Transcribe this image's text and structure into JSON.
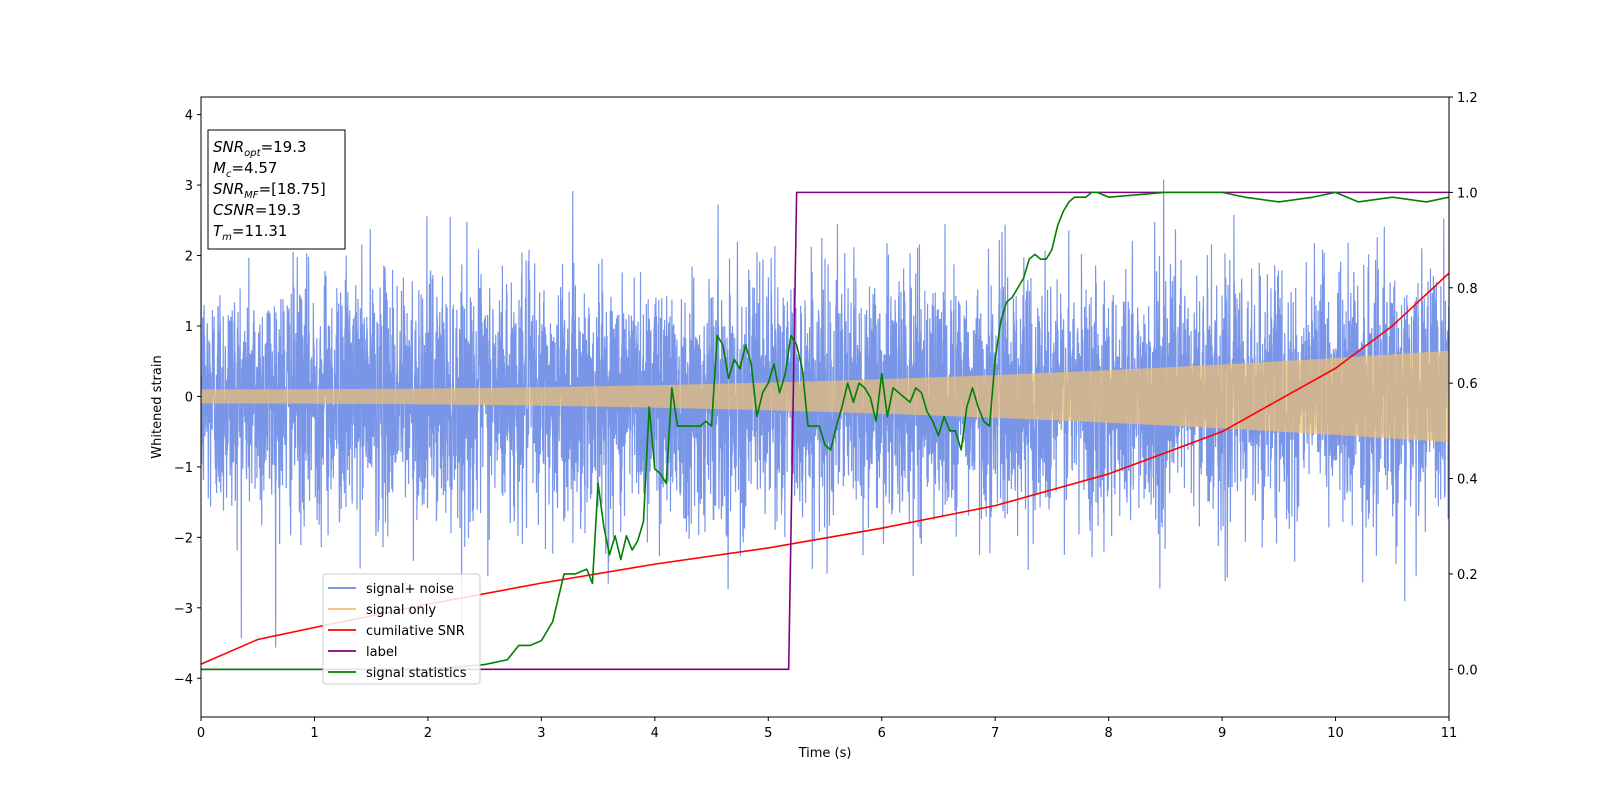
{
  "chart_data": {
    "type": "line",
    "xlabel": "Time (s)",
    "ylabel": "Whitened strain",
    "xlim": [
      0,
      11
    ],
    "ylim": [
      -4.55,
      4.25
    ],
    "y2lim": [
      -0.1,
      1.2
    ],
    "xticks": [
      "0",
      "1",
      "2",
      "3",
      "4",
      "5",
      "6",
      "7",
      "8",
      "9",
      "10",
      "11"
    ],
    "yticks": [
      -4,
      -3,
      -2,
      -1,
      0,
      1,
      2,
      3,
      4
    ],
    "yticks_labels": [
      "−4",
      "−3",
      "−2",
      "−1",
      "0",
      "1",
      "2",
      "3",
      "4"
    ],
    "y2ticks": [
      0.0,
      0.2,
      0.4,
      0.6,
      0.8,
      1.0,
      1.2
    ],
    "y2ticks_labels": [
      "0.0",
      "0.2",
      "0.4",
      "0.6",
      "0.8",
      "1.0",
      "1.2"
    ],
    "colors": {
      "signal_noise": "#6a8ae6",
      "signal_only": "#f0c070",
      "cumulative_snr": "#ff0000",
      "label": "#800080",
      "signal_statistics": "#008000"
    },
    "signal_noise": {
      "noise_std": 0.85,
      "typical_peak": 2.6,
      "max": 3.85,
      "min": -4.15,
      "note_axis": "left"
    },
    "signal_only": {
      "axis": "left",
      "amplitude_start": 0.1,
      "amplitude_end": 0.65
    },
    "cumulative_snr": {
      "axis": "left",
      "x": [
        0,
        0.5,
        1,
        2,
        3,
        4,
        5,
        6,
        7,
        8,
        9,
        10,
        10.5,
        11
      ],
      "y": [
        -3.8,
        -3.45,
        -3.28,
        -2.95,
        -2.65,
        -2.38,
        -2.15,
        -1.87,
        -1.55,
        -1.1,
        -0.5,
        0.4,
        1.0,
        1.75
      ]
    },
    "label": {
      "axis": "right",
      "x": [
        0,
        5.18,
        5.25,
        11
      ],
      "y": [
        0.0,
        0.0,
        1.0,
        1.0
      ]
    },
    "signal_statistics": {
      "axis": "right",
      "x": [
        0,
        1,
        2,
        2.5,
        2.7,
        2.8,
        2.9,
        3.0,
        3.1,
        3.2,
        3.3,
        3.4,
        3.45,
        3.5,
        3.55,
        3.6,
        3.65,
        3.7,
        3.75,
        3.8,
        3.85,
        3.9,
        3.95,
        4.0,
        4.05,
        4.1,
        4.15,
        4.2,
        4.3,
        4.4,
        4.45,
        4.5,
        4.55,
        4.6,
        4.65,
        4.7,
        4.75,
        4.8,
        4.85,
        4.9,
        4.95,
        5.0,
        5.05,
        5.1,
        5.15,
        5.2,
        5.25,
        5.3,
        5.35,
        5.4,
        5.45,
        5.5,
        5.55,
        5.6,
        5.65,
        5.7,
        5.75,
        5.8,
        5.85,
        5.9,
        5.95,
        6.0,
        6.05,
        6.1,
        6.15,
        6.2,
        6.25,
        6.3,
        6.35,
        6.4,
        6.45,
        6.5,
        6.55,
        6.6,
        6.65,
        6.7,
        6.75,
        6.8,
        6.85,
        6.9,
        6.95,
        7.0,
        7.05,
        7.1,
        7.15,
        7.2,
        7.25,
        7.3,
        7.35,
        7.4,
        7.45,
        7.5,
        7.55,
        7.6,
        7.65,
        7.7,
        7.75,
        7.8,
        7.85,
        7.9,
        8.0,
        8.5,
        9.0,
        9.2,
        9.5,
        9.8,
        10.0,
        10.2,
        10.5,
        10.8,
        11.0
      ],
      "y": [
        0.0,
        0.0,
        0.0,
        0.01,
        0.02,
        0.05,
        0.05,
        0.06,
        0.1,
        0.2,
        0.2,
        0.21,
        0.18,
        0.39,
        0.3,
        0.24,
        0.28,
        0.23,
        0.28,
        0.25,
        0.27,
        0.31,
        0.55,
        0.42,
        0.41,
        0.39,
        0.59,
        0.51,
        0.51,
        0.51,
        0.52,
        0.51,
        0.7,
        0.68,
        0.61,
        0.65,
        0.63,
        0.68,
        0.64,
        0.53,
        0.58,
        0.6,
        0.64,
        0.58,
        0.62,
        0.7,
        0.68,
        0.63,
        0.51,
        0.51,
        0.51,
        0.47,
        0.46,
        0.51,
        0.55,
        0.6,
        0.56,
        0.6,
        0.59,
        0.57,
        0.52,
        0.62,
        0.53,
        0.59,
        0.58,
        0.57,
        0.56,
        0.59,
        0.58,
        0.54,
        0.52,
        0.49,
        0.53,
        0.5,
        0.5,
        0.46,
        0.55,
        0.59,
        0.55,
        0.52,
        0.51,
        0.65,
        0.73,
        0.77,
        0.78,
        0.8,
        0.82,
        0.86,
        0.87,
        0.86,
        0.86,
        0.88,
        0.93,
        0.96,
        0.98,
        0.99,
        0.99,
        0.99,
        1.0,
        1.0,
        0.99,
        1.0,
        1.0,
        0.99,
        0.98,
        0.99,
        1.0,
        0.98,
        0.99,
        0.98,
        0.99
      ]
    },
    "legend": {
      "position": "lower-left",
      "entries": [
        {
          "label": "signal+ noise",
          "color": "#6a8ae6"
        },
        {
          "label": "signal only",
          "color": "#f0c070"
        },
        {
          "label": "cumilative SNR",
          "color": "#ff0000"
        },
        {
          "label": "label",
          "color": "#800080"
        },
        {
          "label": "signal statistics",
          "color": "#008000"
        }
      ]
    },
    "annotations": [
      {
        "sym": "SNR",
        "sub": "opt",
        "rest": "=19.3"
      },
      {
        "sym": "M",
        "sub": "c",
        "rest": "=4.57"
      },
      {
        "sym": "SNR",
        "sub": "MF",
        "rest": "=[18.75]"
      },
      {
        "sym": "CSNR",
        "sub": "",
        "rest": "=19.3"
      },
      {
        "sym": "T",
        "sub": "m",
        "rest": "=11.31"
      }
    ]
  }
}
